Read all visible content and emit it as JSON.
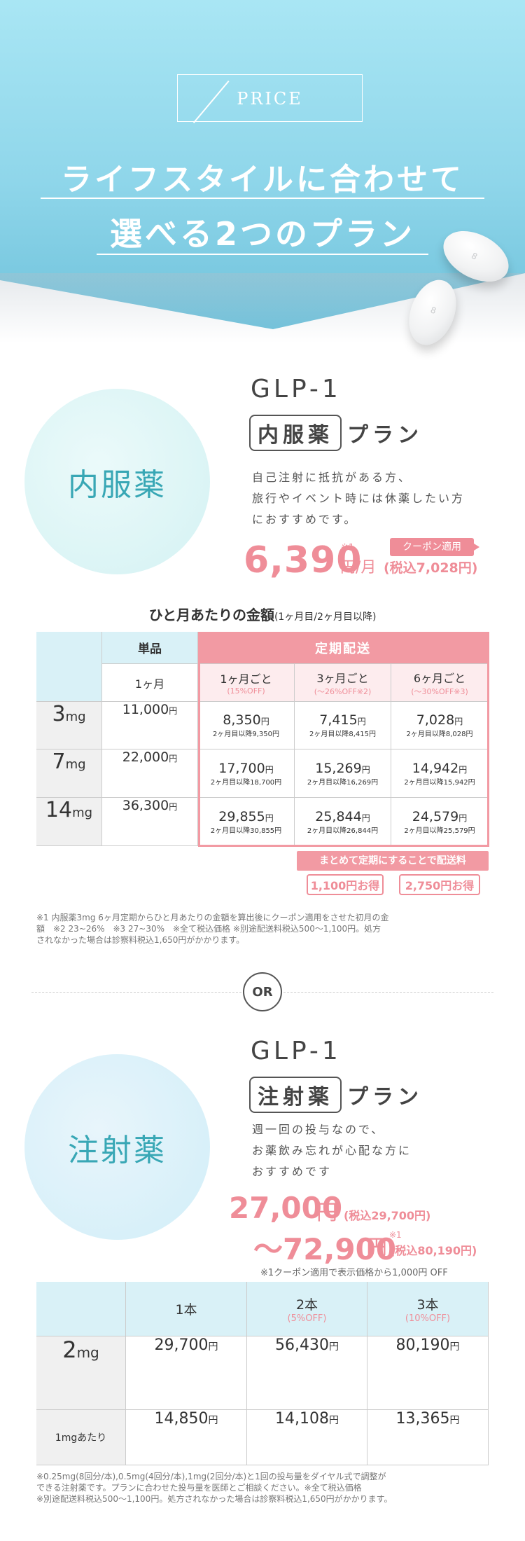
{
  "hero": {
    "price_label": "PRICE",
    "title_line1": "ライフスタイルに合わせて",
    "title_line2": "選べる2つのプラン",
    "pill_mark": "8"
  },
  "oral_plan": {
    "circle_label": "内服薬",
    "glp": "GLP-1",
    "plan_box": "内服薬",
    "plan_word": "プラン",
    "desc": [
      "自己注射に抵抗がある方、",
      "旅行やイベント時には休薬したい方",
      "におすすめです。"
    ],
    "price": "6,390",
    "price_note": "※1",
    "price_unit": "円/月",
    "price_tax": "(税込7,028円)",
    "coupon": "クーポン適用"
  },
  "table1": {
    "title": "ひと月あたりの金額",
    "title_sub": "(1ヶ月目/2ヶ月目以降)",
    "head_single": "単品",
    "head_subscription": "定期配送",
    "sub_heads": [
      {
        "label": "1ヶ月",
        "sub": ""
      },
      {
        "label": "1ヶ月ごと",
        "sub": "(15%OFF)"
      },
      {
        "label": "3ヶ月ごと",
        "sub": "(〜26%OFF※2)"
      },
      {
        "label": "6ヶ月ごと",
        "sub": "(〜30%OFF※3)"
      }
    ],
    "rows": [
      {
        "dose": "3",
        "unit": "mg",
        "single": "11,000",
        "cells": [
          {
            "price": "8,350",
            "later": "2ヶ月目以降9,350円"
          },
          {
            "price": "7,415",
            "later": "2ヶ月目以降8,415円"
          },
          {
            "price": "7,028",
            "later": "2ヶ月目以降8,028円"
          }
        ]
      },
      {
        "dose": "7",
        "unit": "mg",
        "single": "22,000",
        "cells": [
          {
            "price": "17,700",
            "later": "2ヶ月目以降18,700円"
          },
          {
            "price": "15,269",
            "later": "2ヶ月目以降16,269円"
          },
          {
            "price": "14,942",
            "later": "2ヶ月目以降15,942円"
          }
        ]
      },
      {
        "dose": "14",
        "unit": "mg",
        "single": "36,300",
        "cells": [
          {
            "price": "29,855",
            "later": "2ヶ月目以降30,855円"
          },
          {
            "price": "25,844",
            "later": "2ヶ月目以降26,844円"
          },
          {
            "price": "24,579",
            "later": "2ヶ月目以降25,579円"
          }
        ]
      }
    ],
    "yen": "円",
    "bundle_banner": "まとめて定期にすることで配送料",
    "bundle_a": "1,100円お得",
    "bundle_b": "2,750円お得",
    "notes": [
      "※1 内服薬3mg 6ヶ月定期からひと月あたりの金額を算出後にクーポン適用をさせた初月の金",
      "額　※2 23~26%　※3 27~30%　※全て税込価格 ※別途配送料税込500〜1,100円。処方",
      "されなかった場合は診察料税込1,650円がかかります。"
    ]
  },
  "or_label": "OR",
  "injection_plan": {
    "circle_label": "注射薬",
    "glp": "GLP-1",
    "plan_box": "注射薬",
    "plan_word": "プラン",
    "desc": [
      "週一回の投与なので、",
      "お薬飲み忘れが心配な方に",
      "おすすめです"
    ],
    "price_from": "27,000",
    "price_from_unit": "円",
    "price_from_tax": "(税込29,700円)",
    "price_to": "〜72,900",
    "price_to_unit": "円",
    "price_to_note": "※1",
    "price_to_tax": "(税込80,190円)",
    "coupon_note": "※1クーポン適用で表示価格から1,000円 OFF"
  },
  "table2": {
    "heads": [
      {
        "label": "1本",
        "sub": ""
      },
      {
        "label": "2本",
        "sub": "(5%OFF)"
      },
      {
        "label": "3本",
        "sub": "(10%OFF)"
      }
    ],
    "row_dose": {
      "dose": "2",
      "unit": "mg",
      "values": [
        "29,700",
        "56,430",
        "80,190"
      ]
    },
    "row_per": {
      "label": "1mgあたり",
      "values": [
        "14,850",
        "14,108",
        "13,365"
      ]
    },
    "yen": "円",
    "notes": [
      "※0.25mg(8回分/本),0.5mg(4回分/本),1mg(2回分/本)と1回の投与量をダイヤル式で調整が",
      "できる注射薬です。プランに合わせた投与量を医師とご相談ください。※全て税込価格",
      "※別途配送料税込500〜1,100円。処方されなかった場合は診察料税込1,650円がかかります。"
    ]
  },
  "colors": {
    "accent_pink": "#ef8d98",
    "teal": "#38a7b5",
    "sky": "#a9e6f4"
  }
}
